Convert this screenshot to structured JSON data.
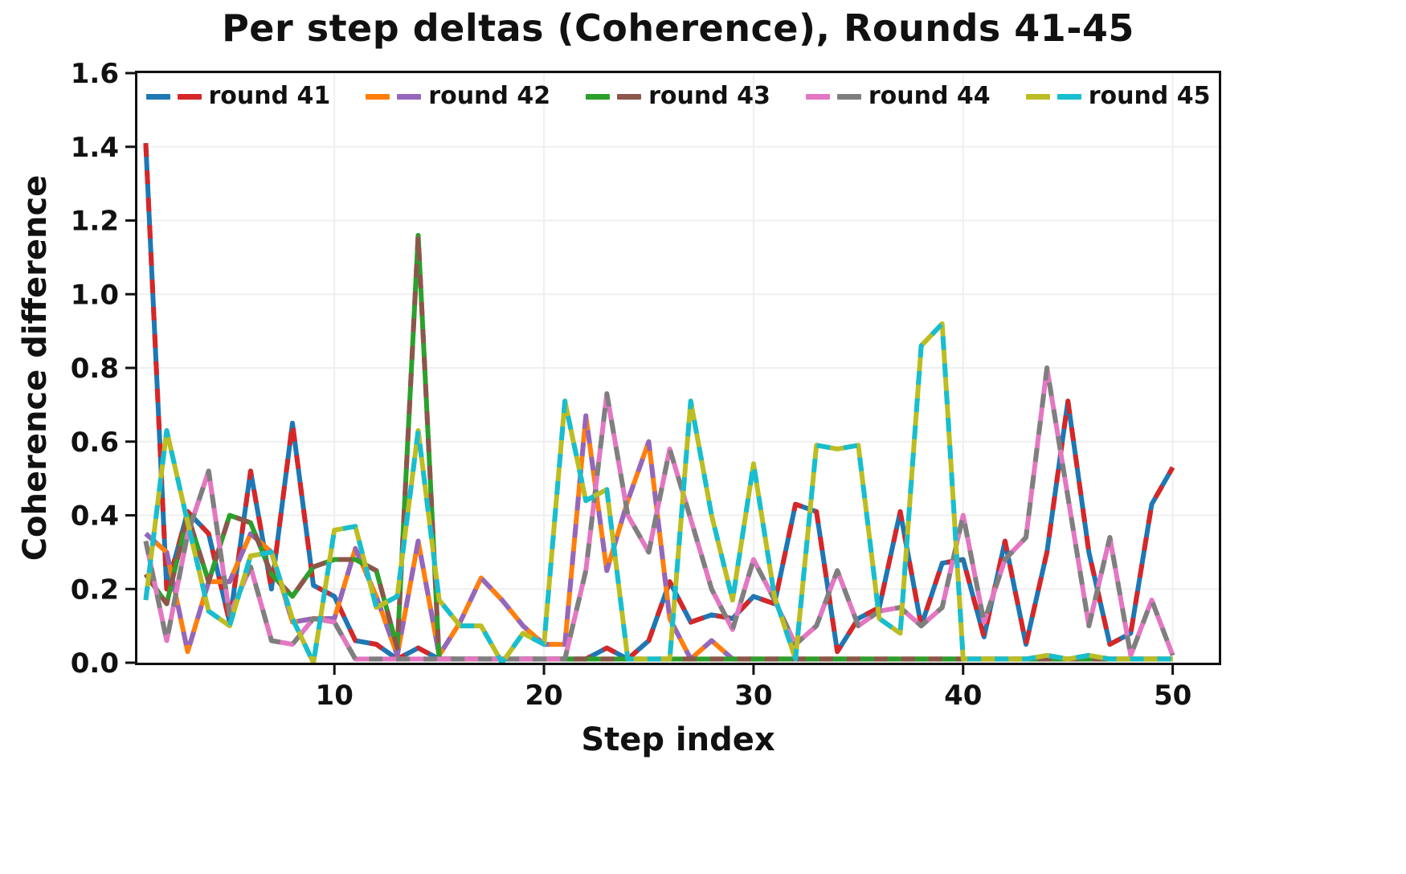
{
  "chart_data": {
    "type": "line",
    "title": "Per step deltas (Coherence), Rounds 41-45",
    "xlabel": "Step index",
    "ylabel": "Coherence difference",
    "xlim": [
      0.6,
      52.2
    ],
    "ylim": [
      0.0,
      1.6
    ],
    "x_ticks": [
      10,
      20,
      30,
      40,
      50
    ],
    "y_ticks": [
      0.0,
      0.2,
      0.4,
      0.6,
      0.8,
      1.0,
      1.2,
      1.4,
      1.6
    ],
    "grid": true,
    "legend_position": "top center inside",
    "x": [
      1,
      2,
      3,
      4,
      5,
      6,
      7,
      8,
      9,
      10,
      11,
      12,
      13,
      14,
      15,
      16,
      17,
      18,
      19,
      20,
      21,
      22,
      23,
      24,
      25,
      26,
      27,
      28,
      29,
      30,
      31,
      32,
      33,
      34,
      35,
      36,
      37,
      38,
      39,
      40,
      41,
      42,
      43,
      44,
      45,
      46,
      47,
      48,
      49,
      50
    ],
    "series": [
      {
        "name": "round 41",
        "colors": [
          "#1f77b4",
          "#d62728"
        ],
        "values": [
          1.41,
          0.2,
          0.41,
          0.35,
          0.11,
          0.52,
          0.2,
          0.65,
          0.21,
          0.18,
          0.06,
          0.05,
          0.01,
          0.04,
          0.01,
          0.01,
          0.01,
          0.01,
          0.01,
          0.01,
          0.01,
          0.01,
          0.04,
          0.01,
          0.06,
          0.22,
          0.11,
          0.13,
          0.12,
          0.18,
          0.16,
          0.43,
          0.41,
          0.03,
          0.12,
          0.15,
          0.41,
          0.1,
          0.27,
          0.28,
          0.07,
          0.33,
          0.05,
          0.3,
          0.71,
          0.3,
          0.05,
          0.08,
          0.43,
          0.53
        ]
      },
      {
        "name": "round 42",
        "colors": [
          "#ff7f0e",
          "#9467bd"
        ],
        "values": [
          0.35,
          0.3,
          0.03,
          0.22,
          0.22,
          0.35,
          0.3,
          0.11,
          0.12,
          0.12,
          0.31,
          0.18,
          0.02,
          0.33,
          0.02,
          0.11,
          0.23,
          0.17,
          0.1,
          0.05,
          0.05,
          0.67,
          0.25,
          0.44,
          0.6,
          0.12,
          0.01,
          0.06,
          0.01,
          0.01,
          0.01,
          0.01,
          0.01,
          0.01,
          0.01,
          0.01,
          0.01,
          0.01,
          0.01,
          0.01,
          0.01,
          0.01,
          0.01,
          0.01,
          0.01,
          0.01,
          0.01,
          0.01,
          0.01,
          0.01
        ]
      },
      {
        "name": "round 43",
        "colors": [
          "#2ca02c",
          "#8c564b"
        ],
        "values": [
          0.24,
          0.16,
          0.4,
          0.22,
          0.4,
          0.38,
          0.24,
          0.18,
          0.26,
          0.28,
          0.28,
          0.25,
          0.04,
          1.16,
          0.01,
          0.01,
          0.01,
          0.01,
          0.01,
          0.01,
          0.01,
          0.01,
          0.01,
          0.01,
          0.01,
          0.01,
          0.01,
          0.01,
          0.01,
          0.01,
          0.01,
          0.01,
          0.01,
          0.01,
          0.01,
          0.01,
          0.01,
          0.01,
          0.01,
          0.01,
          0.01,
          0.01,
          0.01,
          0.01,
          0.01,
          0.01,
          0.01,
          0.01,
          0.01,
          0.01
        ]
      },
      {
        "name": "round 44",
        "colors": [
          "#e377c2",
          "#7f7f7f"
        ],
        "values": [
          0.33,
          0.06,
          0.35,
          0.52,
          0.13,
          0.26,
          0.06,
          0.05,
          0.12,
          0.11,
          0.01,
          0.01,
          0.01,
          0.01,
          0.01,
          0.01,
          0.01,
          0.01,
          0.01,
          0.01,
          0.01,
          0.25,
          0.73,
          0.4,
          0.3,
          0.58,
          0.39,
          0.2,
          0.09,
          0.28,
          0.17,
          0.05,
          0.1,
          0.25,
          0.1,
          0.14,
          0.15,
          0.1,
          0.15,
          0.4,
          0.11,
          0.28,
          0.34,
          0.8,
          0.45,
          0.1,
          0.34,
          0.02,
          0.17,
          0.02
        ]
      },
      {
        "name": "round 45",
        "colors": [
          "#bcbd22",
          "#17becf"
        ],
        "values": [
          0.17,
          0.63,
          0.38,
          0.14,
          0.1,
          0.29,
          0.3,
          0.12,
          0.0,
          0.36,
          0.37,
          0.15,
          0.18,
          0.63,
          0.17,
          0.1,
          0.1,
          0.0,
          0.08,
          0.05,
          0.71,
          0.44,
          0.47,
          0.01,
          0.01,
          0.01,
          0.71,
          0.4,
          0.17,
          0.54,
          0.18,
          0.01,
          0.59,
          0.58,
          0.59,
          0.12,
          0.08,
          0.86,
          0.92,
          0.01,
          0.01,
          0.01,
          0.01,
          0.02,
          0.01,
          0.02,
          0.01,
          0.01,
          0.01,
          0.01
        ]
      }
    ]
  }
}
